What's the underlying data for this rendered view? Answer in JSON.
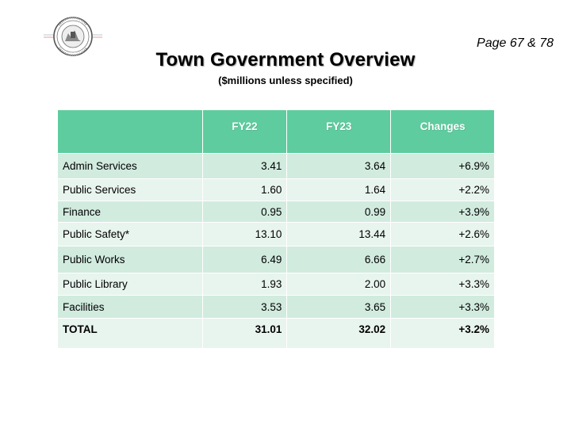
{
  "header": {
    "page_ref": "Page 67 & 78",
    "title": "Town Government Overview",
    "subtitle": "($millions unless specified)",
    "seal_icon": "town-seal-icon"
  },
  "table": {
    "columns": [
      "",
      "FY22",
      "FY23",
      "Changes"
    ],
    "rows": [
      {
        "name": "Admin Services",
        "fy22": "3.41",
        "fy23": "3.64",
        "change": "+6.9%"
      },
      {
        "name": "Public Services",
        "fy22": "1.60",
        "fy23": "1.64",
        "change": "+2.2%"
      },
      {
        "name": "Finance",
        "fy22": "0.95",
        "fy23": "0.99",
        "change": "+3.9%"
      },
      {
        "name": "Public Safety*",
        "fy22": "13.10",
        "fy23": "13.44",
        "change": "+2.6%"
      },
      {
        "name": "Public Works",
        "fy22": "6.49",
        "fy23": "6.66",
        "change": "+2.7%"
      },
      {
        "name": "Public Library",
        "fy22": "1.93",
        "fy23": "2.00",
        "change": "+3.3%"
      },
      {
        "name": "Facilities",
        "fy22": "3.53",
        "fy23": "3.65",
        "change": "+3.3%"
      }
    ],
    "total": {
      "name": "TOTAL",
      "fy22": "31.01",
      "fy23": "32.02",
      "change": "+3.2%"
    }
  },
  "colors": {
    "header_green": "#5ecc9e",
    "row_dark": "#d1ebdf",
    "row_light": "#e8f4ee"
  }
}
